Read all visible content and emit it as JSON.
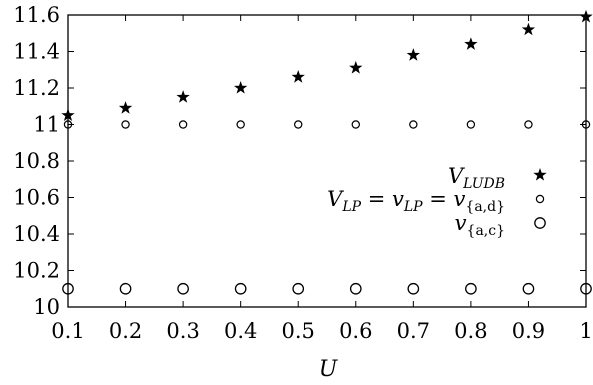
{
  "chart_data": {
    "type": "scatter",
    "title": "",
    "xlabel": "U",
    "ylabel": "",
    "xlim": [
      0.1,
      1
    ],
    "ylim": [
      10,
      11.6
    ],
    "x_ticks": [
      "0.1",
      "0.2",
      "0.3",
      "0.4",
      "0.5",
      "0.6",
      "0.7",
      "0.8",
      "0.9",
      "1"
    ],
    "y_ticks": [
      "10",
      "10.2",
      "10.4",
      "10.6",
      "10.8",
      "11",
      "11.2",
      "11.4",
      "11.6"
    ],
    "x": [
      0.1,
      0.2,
      0.3,
      0.4,
      0.5,
      0.6,
      0.7,
      0.8,
      0.9,
      1.0
    ],
    "series": [
      {
        "name": "V_LUDB",
        "marker": "star",
        "values": [
          11.05,
          11.09,
          11.15,
          11.2,
          11.26,
          11.31,
          11.38,
          11.44,
          11.52,
          11.59
        ]
      },
      {
        "name": "V_LP = v_LP = v_{a,d}",
        "marker": "small-circle",
        "values": [
          11.0,
          11.0,
          11.0,
          11.0,
          11.0,
          11.0,
          11.0,
          11.0,
          11.0,
          11.0
        ]
      },
      {
        "name": "v_{a,c}",
        "marker": "large-circle",
        "values": [
          10.1,
          10.1,
          10.1,
          10.1,
          10.1,
          10.1,
          10.1,
          10.1,
          10.1,
          10.1
        ]
      }
    ],
    "legend_position": "center-right",
    "grid": false
  },
  "legend": {
    "v_ludb": {
      "main": "V",
      "sub": "LUDB"
    },
    "v_lp": {
      "p1": "V",
      "s1": "LP",
      "eq1": " = ",
      "p2": "v",
      "s2": "LP",
      "eq2": " = ",
      "p3": "v",
      "s3": "{a,d}"
    },
    "v_ac": {
      "main": "v",
      "sub": "{a,c}"
    }
  }
}
